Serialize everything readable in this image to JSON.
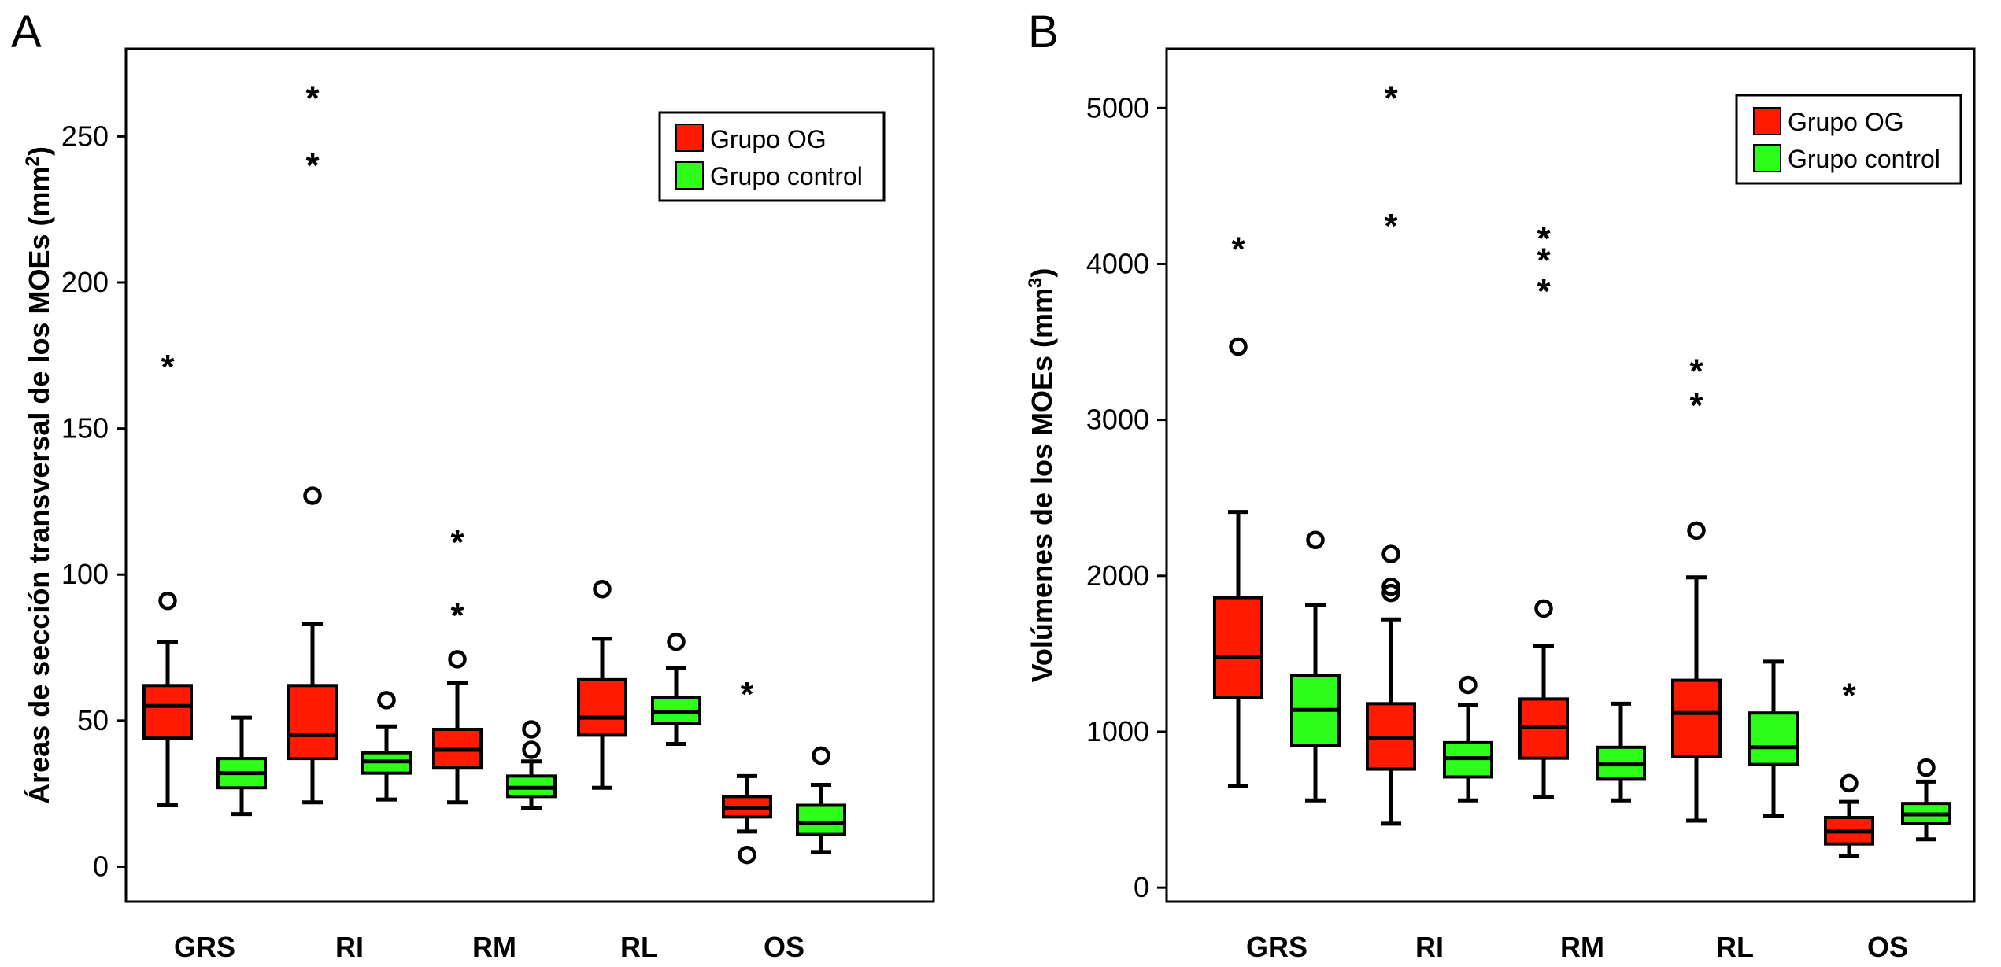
{
  "chart_data": [
    {
      "panel": "A",
      "type": "boxplot",
      "ylabel": "Áreas de sección transversal de los MOEs (mm",
      "ylabel_superscript": "2",
      "ylabel_close": ")",
      "ylim": [
        -12,
        280
      ],
      "yticks": [
        "0",
        "50",
        "100",
        "150",
        "200",
        "250"
      ],
      "categories": [
        "GRS",
        "RI",
        "RM",
        "RL",
        "OS"
      ],
      "legend": [
        {
          "name": "Grupo OG",
          "color": "#ff1a00"
        },
        {
          "name": "Grupo control",
          "color": "#2dff1a"
        }
      ],
      "series": [
        {
          "name": "Grupo OG",
          "boxes": [
            {
              "min": 21,
              "q1": 44,
              "median": 55,
              "q3": 62,
              "max": 77,
              "outliers": [
                91
              ],
              "extremes": [
                173
              ]
            },
            {
              "min": 22,
              "q1": 37,
              "median": 45,
              "q3": 62,
              "max": 83,
              "outliers": [
                127
              ],
              "extremes": [
                242,
                265
              ]
            },
            {
              "min": 22,
              "q1": 34,
              "median": 40,
              "q3": 47,
              "max": 63,
              "outliers": [
                71
              ],
              "extremes": [
                88,
                113
              ]
            },
            {
              "min": 27,
              "q1": 45,
              "median": 51,
              "q3": 64,
              "max": 78,
              "outliers": [
                95
              ],
              "extremes": []
            },
            {
              "min": 12,
              "q1": 17,
              "median": 20,
              "q3": 24,
              "max": 31,
              "outliers": [
                4
              ],
              "extremes": [
                61
              ]
            }
          ]
        },
        {
          "name": "Grupo control",
          "boxes": [
            {
              "min": 18,
              "q1": 27,
              "median": 32,
              "q3": 37,
              "max": 51,
              "outliers": [],
              "extremes": []
            },
            {
              "min": 23,
              "q1": 32,
              "median": 36,
              "q3": 39,
              "max": 48,
              "outliers": [
                57
              ],
              "extremes": []
            },
            {
              "min": 20,
              "q1": 24,
              "median": 27,
              "q3": 31,
              "max": 36,
              "outliers": [
                40,
                47
              ],
              "extremes": []
            },
            {
              "min": 42,
              "q1": 49,
              "median": 53,
              "q3": 58,
              "max": 68,
              "outliers": [
                77
              ],
              "extremes": []
            },
            {
              "min": 5,
              "q1": 11,
              "median": 15,
              "q3": 21,
              "max": 28,
              "outliers": [
                38
              ],
              "extremes": []
            }
          ]
        }
      ]
    },
    {
      "panel": "B",
      "type": "boxplot",
      "ylabel": "Volúmenes de los MOEs (mm",
      "ylabel_superscript": "3",
      "ylabel_close": ")",
      "ylim": [
        -90,
        5380
      ],
      "yticks": [
        "0",
        "1000",
        "2000",
        "3000",
        "4000",
        "5000"
      ],
      "categories": [
        "GRS",
        "RI",
        "RM",
        "RL",
        "OS"
      ],
      "legend": [
        {
          "name": "Grupo OG",
          "color": "#ff1a00"
        },
        {
          "name": "Grupo control",
          "color": "#2dff1a"
        }
      ],
      "series": [
        {
          "name": "Grupo OG",
          "boxes": [
            {
              "min": 650,
              "q1": 1220,
              "median": 1480,
              "q3": 1860,
              "max": 2410,
              "outliers": [
                3470
              ],
              "extremes": [
                4130
              ]
            },
            {
              "min": 410,
              "q1": 760,
              "median": 960,
              "q3": 1180,
              "max": 1720,
              "outliers": [
                1890,
                1930,
                2140
              ],
              "extremes": [
                4280,
                5100
              ]
            },
            {
              "min": 580,
              "q1": 830,
              "median": 1030,
              "q3": 1210,
              "max": 1550,
              "outliers": [
                1790
              ],
              "extremes": [
                3860,
                4060,
                4200
              ]
            },
            {
              "min": 430,
              "q1": 840,
              "median": 1120,
              "q3": 1330,
              "max": 1990,
              "outliers": [
                2290
              ],
              "extremes": [
                3130,
                3350
              ]
            },
            {
              "min": 200,
              "q1": 280,
              "median": 360,
              "q3": 450,
              "max": 550,
              "outliers": [
                670
              ],
              "extremes": [
                1270
              ]
            }
          ]
        },
        {
          "name": "Grupo control",
          "boxes": [
            {
              "min": 560,
              "q1": 910,
              "median": 1140,
              "q3": 1360,
              "max": 1810,
              "outliers": [
                2230
              ],
              "extremes": []
            },
            {
              "min": 560,
              "q1": 710,
              "median": 830,
              "q3": 930,
              "max": 1170,
              "outliers": [
                1300
              ],
              "extremes": []
            },
            {
              "min": 560,
              "q1": 700,
              "median": 790,
              "q3": 900,
              "max": 1180,
              "outliers": [],
              "extremes": []
            },
            {
              "min": 460,
              "q1": 790,
              "median": 900,
              "q3": 1120,
              "max": 1450,
              "outliers": [],
              "extremes": []
            },
            {
              "min": 310,
              "q1": 410,
              "median": 470,
              "q3": 540,
              "max": 680,
              "outliers": [
                770
              ],
              "extremes": []
            }
          ]
        }
      ]
    }
  ]
}
